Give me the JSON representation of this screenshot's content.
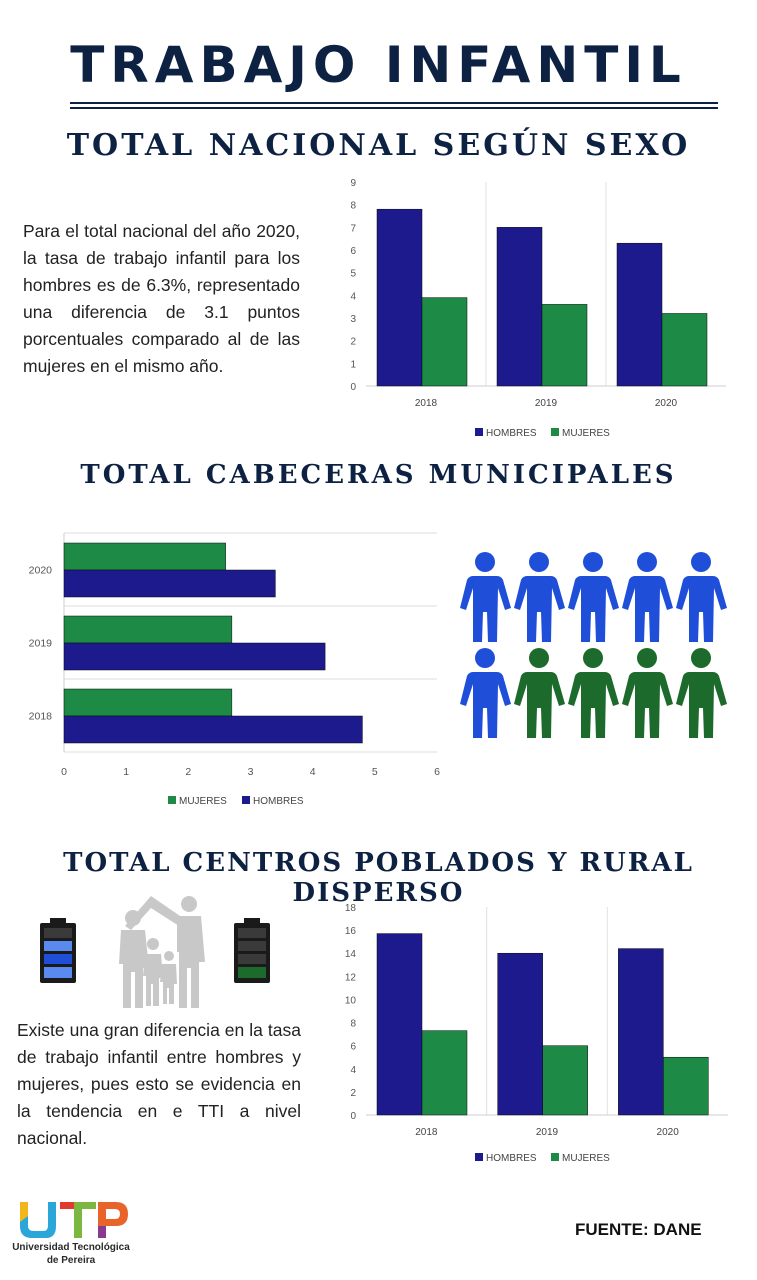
{
  "title": "TRABAJO INFANTIL",
  "source": "FUENTE: DANE",
  "logo": {
    "line1": "Universidad Tecnológica",
    "line2": "de Pereira"
  },
  "colors": {
    "hombres": "#1c1a8c",
    "mujeres": "#1d8b45",
    "title": "#0d2142",
    "people_blue": "#1f4fd8",
    "people_green": "#1c6a2c",
    "family_gray": "#c8c8c8"
  },
  "section1": {
    "title": "TOTAL NACIONAL SEGÚN SEXO",
    "text": "Para el total nacional del año 2020, la tasa de trabajo infantil para los hombres es de 6.3%, representado una diferencia de 3.1 puntos porcentuales comparado al de las mujeres en el mismo año."
  },
  "section2": {
    "title": "TOTAL CABECERAS MUNICIPALES"
  },
  "section3": {
    "title": "TOTAL CENTROS POBLADOS Y RURAL DISPERSO",
    "text": "Existe una gran diferencia en la tasa de trabajo infantil entre hombres y mujeres, pues esto se evidencia en la tendencia en e TTI a nivel nacional."
  },
  "chart_data": [
    {
      "type": "bar",
      "categories": [
        "2018",
        "2019",
        "2020"
      ],
      "series": [
        {
          "name": "HOMBRES",
          "values": [
            7.8,
            7,
            6.3
          ],
          "labels": [
            "7,8",
            "7",
            "6,3"
          ]
        },
        {
          "name": "MUJERES",
          "values": [
            3.9,
            3.6,
            3.2
          ],
          "labels": [
            "3,9",
            "3,6",
            "3,2"
          ]
        }
      ],
      "ylim": [
        0,
        9
      ],
      "yticks": [
        "0",
        "1",
        "2",
        "3",
        "4",
        "5",
        "6",
        "7",
        "8",
        "9"
      ],
      "grid": false,
      "legend": "bottom"
    },
    {
      "type": "bar",
      "orientation": "horizontal",
      "categories": [
        "2020",
        "2019",
        "2018"
      ],
      "series": [
        {
          "name": "MUJERES",
          "values": [
            2.6,
            2.7,
            2.7
          ],
          "labels": [
            "2,6",
            "2,7",
            "2,7"
          ]
        },
        {
          "name": "HOMBRES",
          "values": [
            3.4,
            4.2,
            4.8
          ],
          "labels": [
            "3,4",
            "4,2",
            "4,8"
          ]
        }
      ],
      "xlim": [
        0,
        6
      ],
      "xticks": [
        "0",
        "1",
        "2",
        "3",
        "4",
        "5",
        "6"
      ],
      "grid": false,
      "legend": "bottom"
    },
    {
      "type": "bar",
      "categories": [
        "2018",
        "2019",
        "2020"
      ],
      "series": [
        {
          "name": "HOMBRES",
          "values": [
            15.7,
            14,
            14.4
          ],
          "labels": [
            "15,7",
            "14",
            "14,4"
          ]
        },
        {
          "name": "MUJERES",
          "values": [
            7.3,
            6,
            5
          ],
          "labels": [
            "7,3",
            "6",
            "5"
          ]
        }
      ],
      "ylim": [
        0,
        18
      ],
      "yticks": [
        "0",
        "2",
        "4",
        "6",
        "8",
        "10",
        "12",
        "14",
        "16",
        "18"
      ],
      "grid": false,
      "legend": "bottom"
    }
  ]
}
